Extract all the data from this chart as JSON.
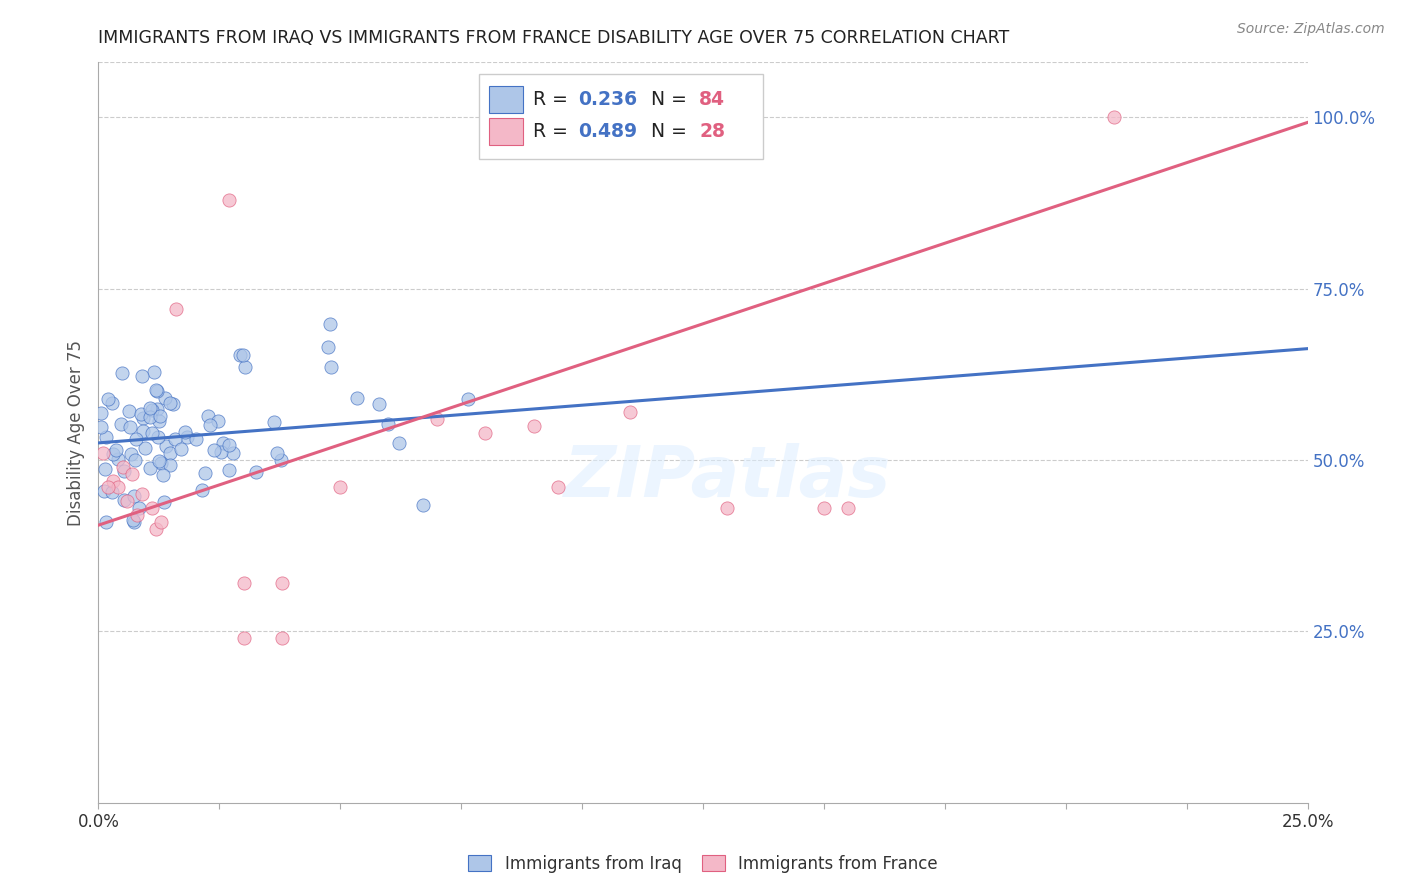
{
  "title": "IMMIGRANTS FROM IRAQ VS IMMIGRANTS FROM FRANCE DISABILITY AGE OVER 75 CORRELATION CHART",
  "source": "Source: ZipAtlas.com",
  "ylabel": "Disability Age Over 75",
  "iraq_R": 0.236,
  "iraq_N": 84,
  "france_R": 0.489,
  "france_N": 28,
  "iraq_color": "#aec6e8",
  "iraq_line_color": "#4472c4",
  "france_color": "#f4b8c8",
  "france_line_color": "#e06080",
  "background_color": "#ffffff",
  "grid_color": "#cccccc",
  "title_color": "#222222",
  "right_tick_color": "#4472c4",
  "watermark": "ZIPatlas",
  "iraq_intercept": 0.525,
  "iraq_slope": 0.55,
  "france_intercept": 0.405,
  "france_slope": 2.35,
  "xlim": [
    0.0,
    0.25
  ],
  "ylim": [
    0.0,
    1.08
  ]
}
